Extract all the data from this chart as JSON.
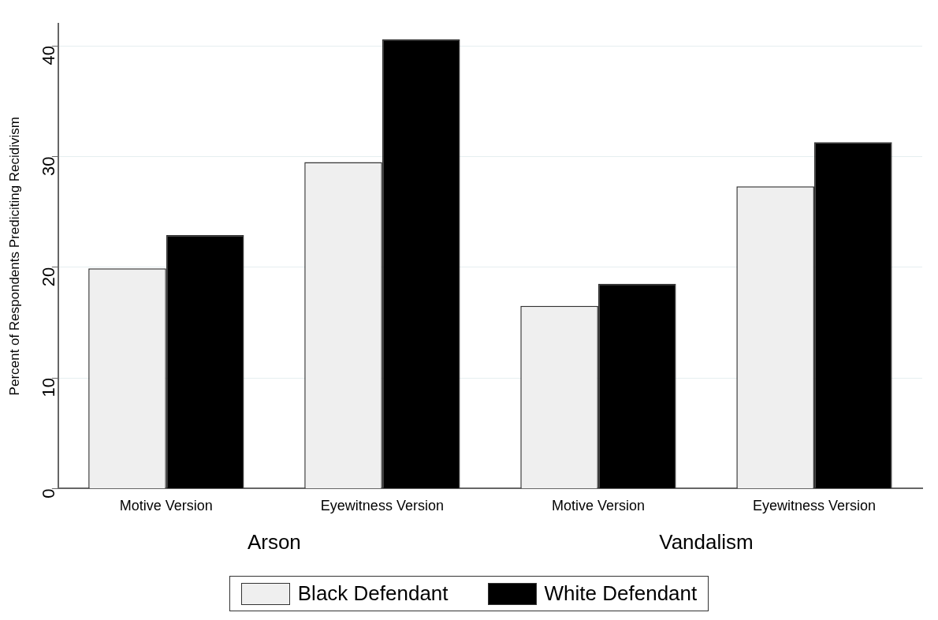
{
  "chart_data": {
    "type": "bar",
    "ylabel": "Percent of Respondents Prediciting Recidivism",
    "categories": [
      "Motive Version",
      "Eyewitness Version",
      "Motive Version",
      "Eyewitness Version"
    ],
    "series": [
      {
        "name": "Black Defendant",
        "color": "#efefef",
        "values": [
          19.9,
          29.5,
          16.5,
          27.3
        ]
      },
      {
        "name": "White Defendant",
        "color": "#000000",
        "values": [
          22.9,
          40.6,
          18.5,
          31.3
        ]
      }
    ],
    "annotations": [
      "Arson",
      "Vandalism"
    ],
    "ylim": [
      0,
      42
    ],
    "yticks": [
      0,
      10,
      20,
      30,
      40
    ],
    "grid": "y",
    "legend": "bottom"
  }
}
